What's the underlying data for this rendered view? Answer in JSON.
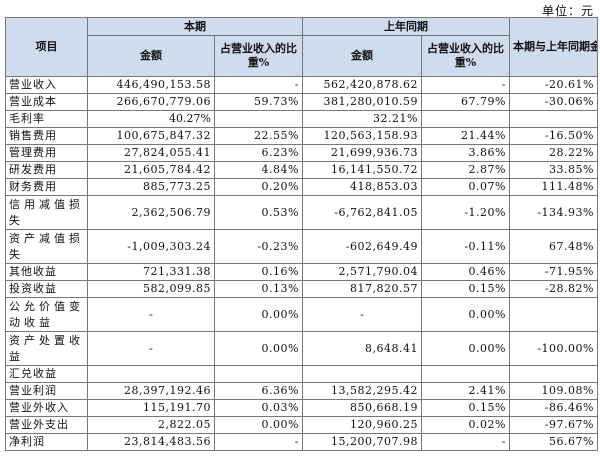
{
  "unit_label": "单位：元",
  "header": {
    "item": "项目",
    "current": "本期",
    "prior": "上年同期",
    "change": "本期与上年同期金额变动比例%",
    "amount": "金额",
    "ratio": "占营业收入的比重%"
  },
  "rows": [
    {
      "item": "营业收入",
      "cur_amt": "446,490,153.58",
      "cur_pct": "-",
      "prior_amt": "562,420,878.62",
      "prior_pct": "-",
      "change": "-20.61%"
    },
    {
      "item": "营业成本",
      "cur_amt": "266,670,779.06",
      "cur_pct": "59.73%",
      "prior_amt": "381,280,010.59",
      "prior_pct": "67.79%",
      "change": "-30.06%"
    },
    {
      "item": "毛利率",
      "cur_amt": "40.27%",
      "cur_pct": "",
      "prior_amt": "32.21%",
      "prior_pct": "",
      "change": ""
    },
    {
      "item": "销售费用",
      "cur_amt": "100,675,847.32",
      "cur_pct": "22.55%",
      "prior_amt": "120,563,158.93",
      "prior_pct": "21.44%",
      "change": "-16.50%"
    },
    {
      "item": "管理费用",
      "cur_amt": "27,824,055.41",
      "cur_pct": "6.23%",
      "prior_amt": "21,699,936.73",
      "prior_pct": "3.86%",
      "change": "28.22%"
    },
    {
      "item": "研发费用",
      "cur_amt": "21,605,784.42",
      "cur_pct": "4.84%",
      "prior_amt": "16,141,550.72",
      "prior_pct": "2.87%",
      "change": "33.85%"
    },
    {
      "item": "财务费用",
      "cur_amt": "885,773.25",
      "cur_pct": "0.20%",
      "prior_amt": "418,853.03",
      "prior_pct": "0.07%",
      "change": "111.48%"
    },
    {
      "item": "信用减值损失",
      "cur_amt": "2,362,506.79",
      "cur_pct": "0.53%",
      "prior_amt": "-6,762,841.05",
      "prior_pct": "-1.20%",
      "change": "-134.93%"
    },
    {
      "item": "资产减值损失",
      "cur_amt": "-1,009,303.24",
      "cur_pct": "-0.23%",
      "prior_amt": "-602,649.49",
      "prior_pct": "-0.11%",
      "change": "67.48%"
    },
    {
      "item": "其他收益",
      "cur_amt": "721,331.38",
      "cur_pct": "0.16%",
      "prior_amt": "2,571,790.04",
      "prior_pct": "0.46%",
      "change": "-71.95%"
    },
    {
      "item": "投资收益",
      "cur_amt": "582,099.85",
      "cur_pct": "0.13%",
      "prior_amt": "817,820.57",
      "prior_pct": "0.15%",
      "change": "-28.82%"
    },
    {
      "item": "公允价值变动收益",
      "cur_amt": "-",
      "cur_pct": "0.00%",
      "prior_amt": "-",
      "prior_pct": "0.00%",
      "change": ""
    },
    {
      "item": "资产处置收益",
      "cur_amt": "-",
      "cur_pct": "0.00%",
      "prior_amt": "8,648.41",
      "prior_pct": "0.00%",
      "change": "-100.00%"
    },
    {
      "item": "汇兑收益",
      "cur_amt": "",
      "cur_pct": "",
      "prior_amt": "",
      "prior_pct": "",
      "change": ""
    },
    {
      "item": "营业利润",
      "cur_amt": "28,397,192.46",
      "cur_pct": "6.36%",
      "prior_amt": "13,582,295.42",
      "prior_pct": "2.41%",
      "change": "109.08%"
    },
    {
      "item": "营业外收入",
      "cur_amt": "115,191.70",
      "cur_pct": "0.03%",
      "prior_amt": "850,668.19",
      "prior_pct": "0.15%",
      "change": "-86.46%"
    },
    {
      "item": "营业外支出",
      "cur_amt": "2,822.05",
      "cur_pct": "0.00%",
      "prior_amt": "120,960.25",
      "prior_pct": "0.02%",
      "change": "-97.67%"
    },
    {
      "item": "净利润",
      "cur_amt": "23,814,483.56",
      "cur_pct": "-",
      "prior_amt": "15,200,707.98",
      "prior_pct": "-",
      "change": "56.67%"
    }
  ]
}
